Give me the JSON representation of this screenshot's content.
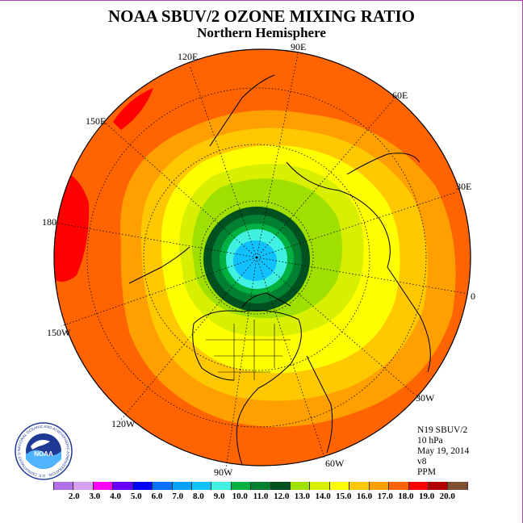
{
  "title": "NOAA SBUV/2 OZONE MIXING RATIO",
  "subtitle": "Northern Hemisphere",
  "longitude_labels": [
    "90E",
    "60E",
    "30E",
    "0",
    "30W",
    "60W",
    "90W",
    "120W",
    "150W",
    "180",
    "150E",
    "120E"
  ],
  "info": {
    "instrument": "N19 SBUV/2",
    "level": "10 hPa",
    "date": "May 19, 2014",
    "version": "v8",
    "units": "PPM"
  },
  "colorbar": {
    "ticks": [
      "2.0",
      "3.0",
      "4.0",
      "5.0",
      "6.0",
      "7.0",
      "8.0",
      "9.0",
      "10.0",
      "11.0",
      "12.0",
      "13.0",
      "14.0",
      "15.0",
      "16.0",
      "17.0",
      "18.0",
      "19.0",
      "20.0"
    ],
    "colors": [
      "#b070e8",
      "#d8a0f0",
      "#ff00ff",
      "#6600ff",
      "#0000ff",
      "#0070ff",
      "#00a0ff",
      "#10c0ff",
      "#40f0e0",
      "#00b040",
      "#008030",
      "#005020",
      "#a0e000",
      "#d8f000",
      "#ffff00",
      "#ffc800",
      "#ffa000",
      "#ff6400",
      "#ff0000",
      "#b00000",
      "#805030"
    ]
  },
  "logo_text": "NOAA",
  "logo_ring_text": "NATIONAL OCEANIC AND ATMOSPHERIC ADMINISTRATION · U.S. DEPARTMENT OF COMMERCE",
  "ozone_bands_ppm": [
    {
      "range": "8.0-9.0",
      "color": "#10c0ff"
    },
    {
      "range": "9.0-10.0",
      "color": "#40f0e0"
    },
    {
      "range": "10.0-11.0",
      "color": "#00b040"
    },
    {
      "range": "11.0-12.0",
      "color": "#008030"
    },
    {
      "range": "12.0-13.0",
      "color": "#005020"
    },
    {
      "range": "13.0-14.0",
      "color": "#a0e000"
    },
    {
      "range": "14.0-15.0",
      "color": "#d8f000"
    },
    {
      "range": "15.0-16.0",
      "color": "#ffff00"
    },
    {
      "range": "16.0-17.0",
      "color": "#ffc800"
    },
    {
      "range": "17.0-18.0",
      "color": "#ffa000"
    },
    {
      "range": "18.0-19.0",
      "color": "#ff6400"
    },
    {
      "range": "19.0-20.0",
      "color": "#ff0000"
    }
  ]
}
